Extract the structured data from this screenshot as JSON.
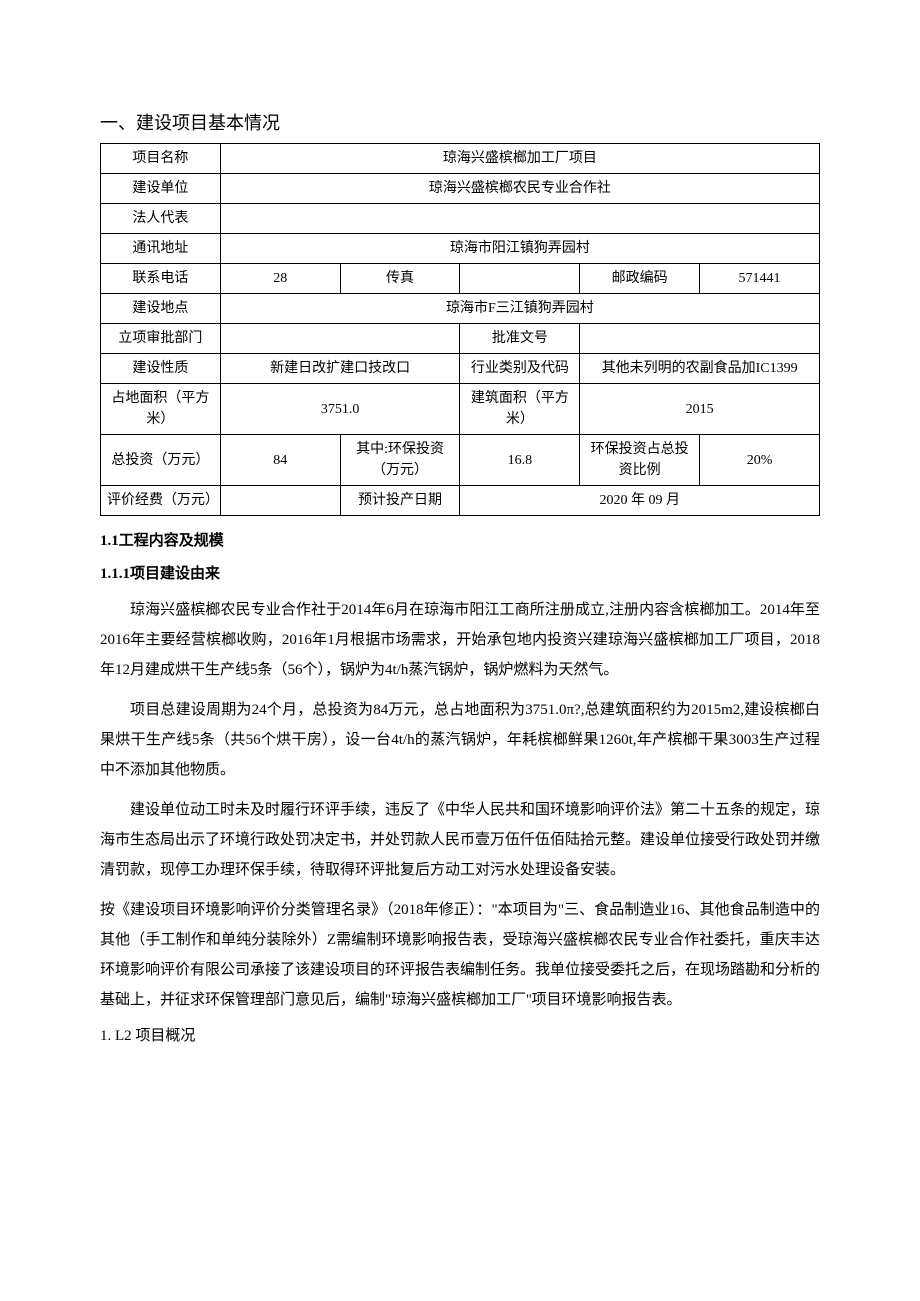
{
  "layout": {
    "page_bg": "#ffffff",
    "text_color": "#000000",
    "border_color": "#000000",
    "table_font_size": 14,
    "body_font_size": 15,
    "heading_font_size": 18,
    "line_height_body": 2.0
  },
  "heading": "一、建设项目基本情况",
  "table": {
    "cols": 12,
    "rows": [
      {
        "cells": [
          {
            "label": true,
            "text": "项目名称",
            "colspan": 2
          },
          {
            "text": "琼海兴盛槟榔加工厂项目",
            "colspan": 10
          }
        ]
      },
      {
        "cells": [
          {
            "label": true,
            "text": "建设单位",
            "colspan": 2
          },
          {
            "text": "琼海兴盛槟榔农民专业合作社",
            "colspan": 10
          }
        ]
      },
      {
        "cells": [
          {
            "label": true,
            "text": "法人代表",
            "colspan": 2
          },
          {
            "text": "",
            "colspan": 10
          }
        ]
      },
      {
        "cells": [
          {
            "label": true,
            "text": "通讯地址",
            "colspan": 2
          },
          {
            "text": "琼海市阳江镇狗弄园村",
            "colspan": 10
          }
        ]
      },
      {
        "cells": [
          {
            "label": true,
            "text": "联系电话",
            "colspan": 2
          },
          {
            "text": "28",
            "colspan": 2
          },
          {
            "label": true,
            "text": "传真",
            "colspan": 2
          },
          {
            "text": "",
            "colspan": 2
          },
          {
            "label": true,
            "text": "邮政编码",
            "colspan": 2
          },
          {
            "text": "571441",
            "colspan": 2
          }
        ]
      },
      {
        "cells": [
          {
            "label": true,
            "text": "建设地点",
            "colspan": 2
          },
          {
            "text": "琼海市F三江镇狗弄园村",
            "colspan": 10
          }
        ]
      },
      {
        "cells": [
          {
            "label": true,
            "text": "立项审批部门",
            "colspan": 2
          },
          {
            "text": "",
            "colspan": 4
          },
          {
            "label": true,
            "text": "批准文号",
            "colspan": 2
          },
          {
            "text": "",
            "colspan": 4
          }
        ]
      },
      {
        "cells": [
          {
            "label": true,
            "text": "建设性质",
            "colspan": 2
          },
          {
            "text": "新建日改扩建口技改口",
            "colspan": 4
          },
          {
            "label": true,
            "text": "行业类别及代码",
            "colspan": 2
          },
          {
            "text": "其他未列明的农副食品加IC1399",
            "colspan": 4
          }
        ]
      },
      {
        "cells": [
          {
            "label": true,
            "text": "占地面积（平方米）",
            "colspan": 2
          },
          {
            "text": "3751.0",
            "colspan": 4
          },
          {
            "label": true,
            "text": "建筑面积（平方米）",
            "colspan": 2
          },
          {
            "text": "2015",
            "colspan": 4
          }
        ]
      },
      {
        "cells": [
          {
            "label": true,
            "text": "总投资（万元）",
            "colspan": 2
          },
          {
            "text": "84",
            "colspan": 2
          },
          {
            "label": true,
            "text": "其中:环保投资（万元）",
            "colspan": 2
          },
          {
            "text": "16.8",
            "colspan": 2
          },
          {
            "label": true,
            "text": "环保投资占总投资比例",
            "colspan": 2
          },
          {
            "text": "20%",
            "colspan": 2
          }
        ]
      },
      {
        "cells": [
          {
            "label": true,
            "text": "评价经费（万元）",
            "colspan": 2
          },
          {
            "text": "",
            "colspan": 2
          },
          {
            "label": true,
            "text": "预计投产日期",
            "colspan": 2
          },
          {
            "text": "2020 年 09 月",
            "colspan": 6
          }
        ]
      }
    ]
  },
  "sections": {
    "s11": "1.1工程内容及规模",
    "s111": "1.1.1项目建设由来",
    "p1": "琼海兴盛槟榔农民专业合作社于2014年6月在琼海市阳江工商所注册成立,注册内容含槟榔加工。2014年至2016年主要经营槟榔收购，2016年1月根据市场需求，开始承包地内投资兴建琼海兴盛槟榔加工厂项目，2018年12月建成烘干生产线5条（56个），锅炉为4t/h蒸汽锅炉，锅炉燃料为天然气。",
    "p2": "项目总建设周期为24个月，总投资为84万元，总占地面积为3751.0π?,总建筑面积约为2015m2,建设槟榔白果烘干生产线5条（共56个烘干房），设一台4t/h的蒸汽锅炉，年耗槟榔鲜果1260t,年产槟榔干果3003生产过程中不添加其他物质。",
    "p3": "建设单位动工时未及时履行环评手续，违反了《中华人民共和国环境影响评价法》第二十五条的规定，琼海市生态局出示了环境行政处罚决定书，并处罚款人民币壹万伍仟伍佰陆拾元整。建设单位接受行政处罚并缴清罚款，现停工办理环保手续，待取得环评批复后方动工对污水处理设备安装。",
    "p4": "按《建设项目环境影响评价分类管理名录》（2018年修正）：\"本项目为\"三、食品制造业16、其他食品制造中的其他（手工制作和单纯分装除外）Z需编制环境影响报告表，受琼海兴盛槟榔农民专业合作社委托，重庆丰达环境影响评价有限公司承接了该建设项目的环评报告表编制任务。我单位接受委托之后，在现场踏勘和分析的基础上，并征求环保管理部门意见后，编制\"琼海兴盛槟榔加工厂''项目环境影响报告表。",
    "s112": "1. L2 项目概况"
  }
}
